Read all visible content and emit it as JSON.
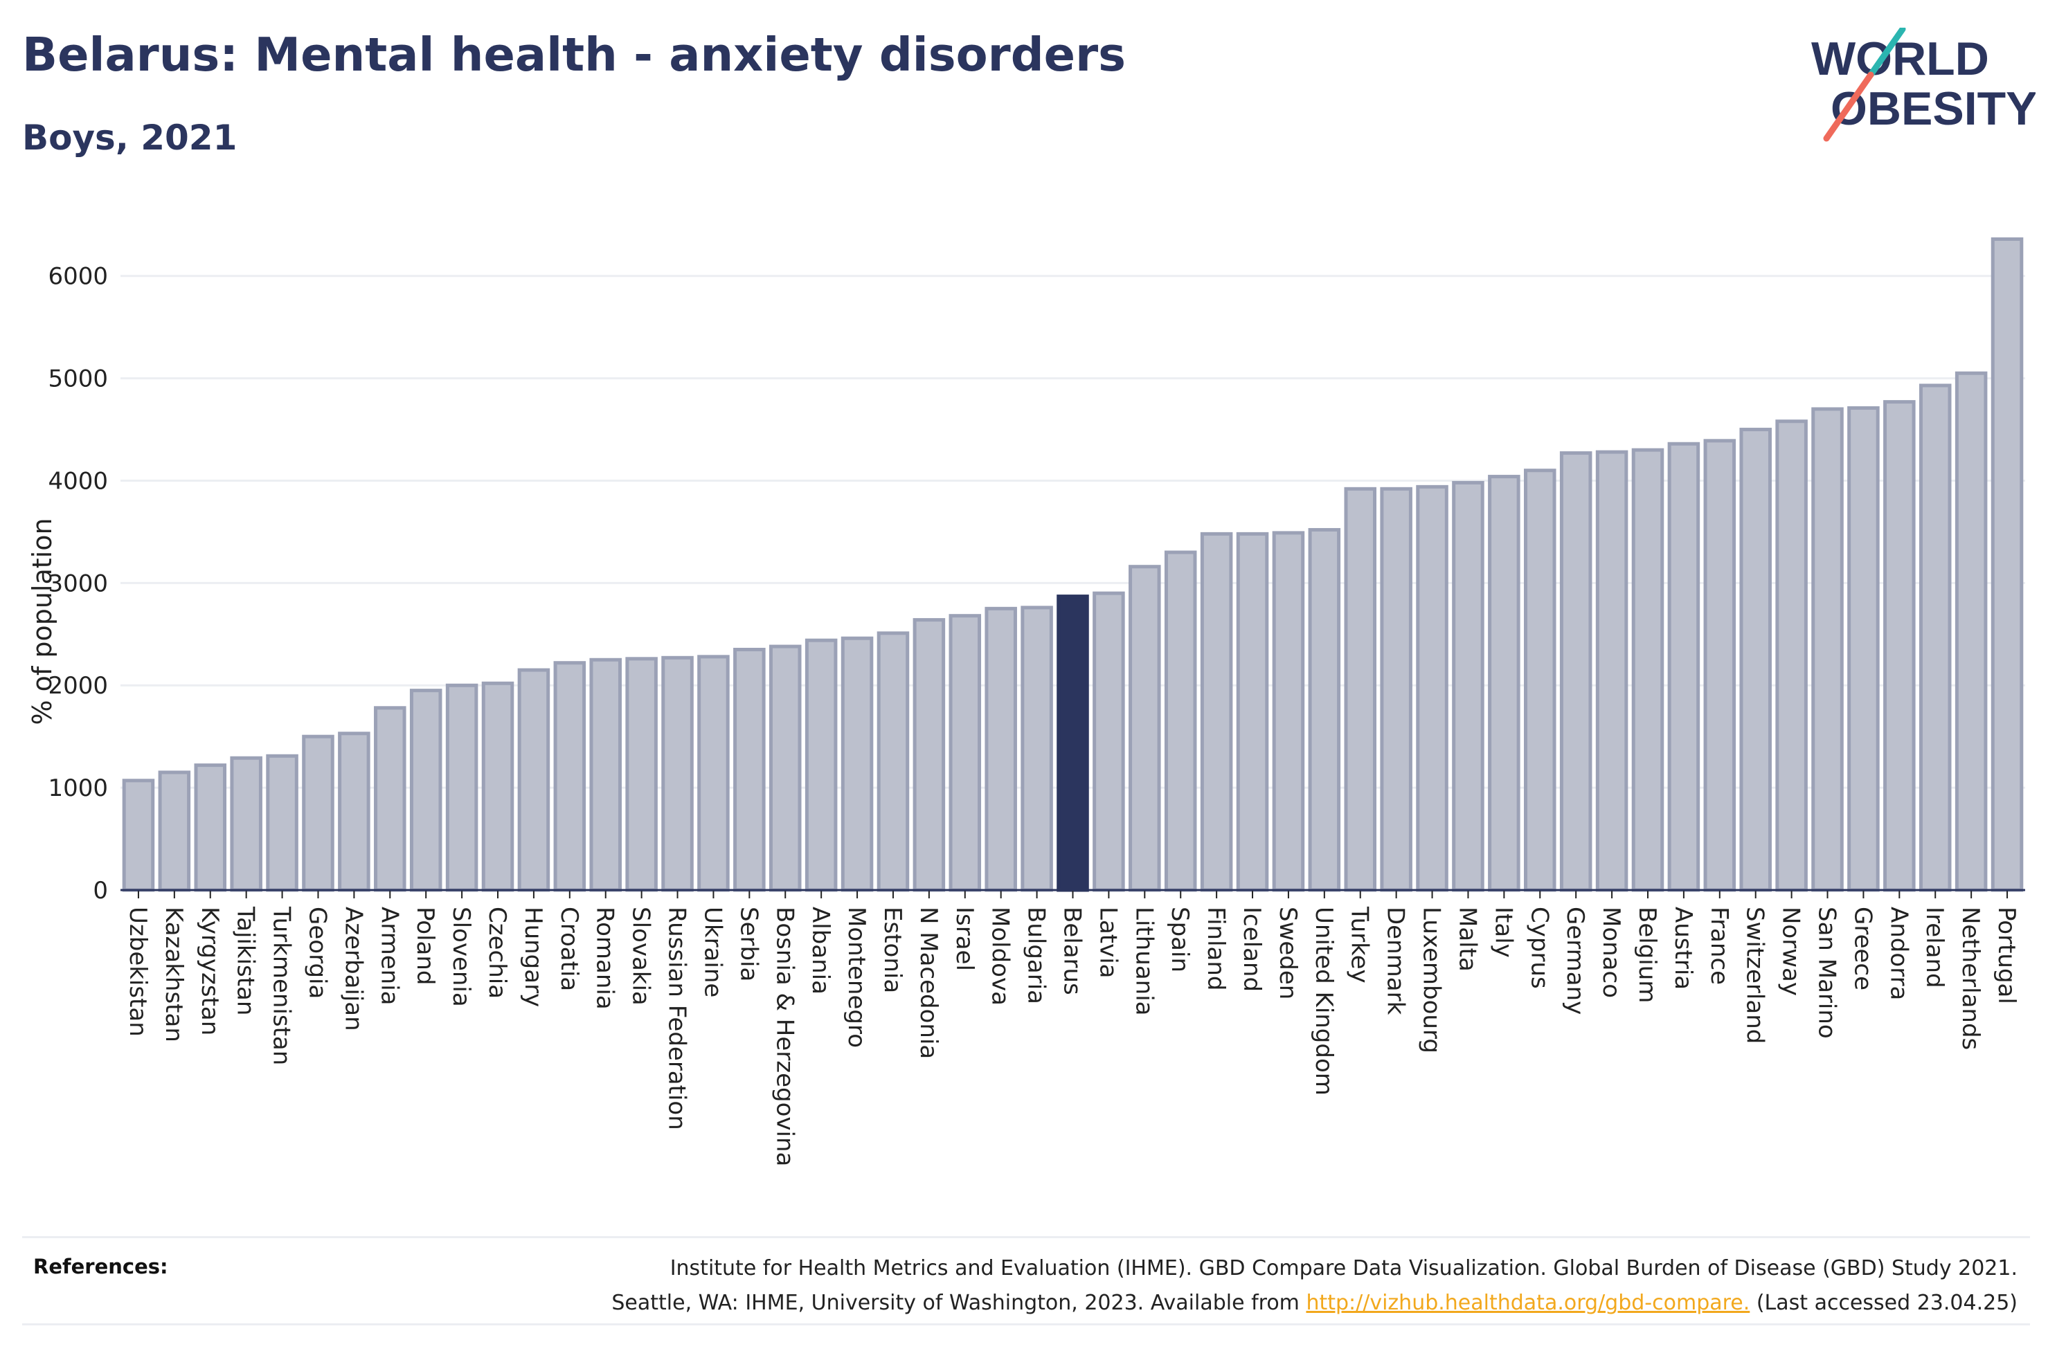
{
  "header": {
    "title": "Belarus: Mental health - anxiety disorders",
    "subtitle": "Boys, 2021"
  },
  "logo": {
    "line1": "WORLD",
    "line2": "OBESITY"
  },
  "chart_data": {
    "type": "bar",
    "ylabel": "% of population",
    "xlabel": "",
    "ylim": [
      0,
      6600
    ],
    "yticks": [
      0,
      1000,
      2000,
      3000,
      4000,
      5000,
      6000
    ],
    "grid": true,
    "highlight": "Belarus",
    "categories": [
      "Uzbekistan",
      "Kazakhstan",
      "Kyrgyzstan",
      "Tajikistan",
      "Turkmenistan",
      "Georgia",
      "Azerbaijan",
      "Armenia",
      "Poland",
      "Slovenia",
      "Czechia",
      "Hungary",
      "Croatia",
      "Romania",
      "Slovakia",
      "Russian Federation",
      "Ukraine",
      "Serbia",
      "Bosnia & Herzegovina",
      "Albania",
      "Montenegro",
      "Estonia",
      "N Macedonia",
      "Israel",
      "Moldova",
      "Bulgaria",
      "Belarus",
      "Latvia",
      "Lithuania",
      "Spain",
      "Finland",
      "Iceland",
      "Sweden",
      "United Kingdom",
      "Turkey",
      "Denmark",
      "Luxembourg",
      "Malta",
      "Italy",
      "Cyprus",
      "Germany",
      "Monaco",
      "Belgium",
      "Austria",
      "France",
      "Switzerland",
      "Norway",
      "San Marino",
      "Greece",
      "Andorra",
      "Ireland",
      "Netherlands",
      "Portugal"
    ],
    "values": [
      1070,
      1150,
      1220,
      1290,
      1310,
      1500,
      1530,
      1780,
      1950,
      2000,
      2020,
      2150,
      2220,
      2250,
      2260,
      2270,
      2280,
      2350,
      2380,
      2440,
      2460,
      2510,
      2640,
      2680,
      2750,
      2760,
      2870,
      2900,
      3160,
      3300,
      3480,
      3480,
      3490,
      3520,
      3920,
      3920,
      3940,
      3980,
      4040,
      4100,
      4270,
      4280,
      4300,
      4360,
      4390,
      4500,
      4580,
      4700,
      4710,
      4770,
      4930,
      5050,
      6360
    ]
  },
  "references": {
    "label": "References:",
    "line1": "Institute for Health Metrics and Evaluation (IHME). GBD Compare Data Visualization. Global Burden of Disease (GBD) Study 2021.",
    "line2_prefix": "Seattle, WA: IHME, University of Washington, 2023. Available from ",
    "link": "http://vizhub.healthdata.org/gbd-compare.",
    "line2_suffix": " (Last accessed 23.04.25)"
  },
  "colors": {
    "bar": "#bcc0cd",
    "bar_stroke": "#9ba1b6",
    "highlight": "#2b355e",
    "grid": "#eceef2",
    "text": "#222222",
    "logo_teal": "#2bb5b0",
    "logo_coral": "#ef6a5b"
  }
}
